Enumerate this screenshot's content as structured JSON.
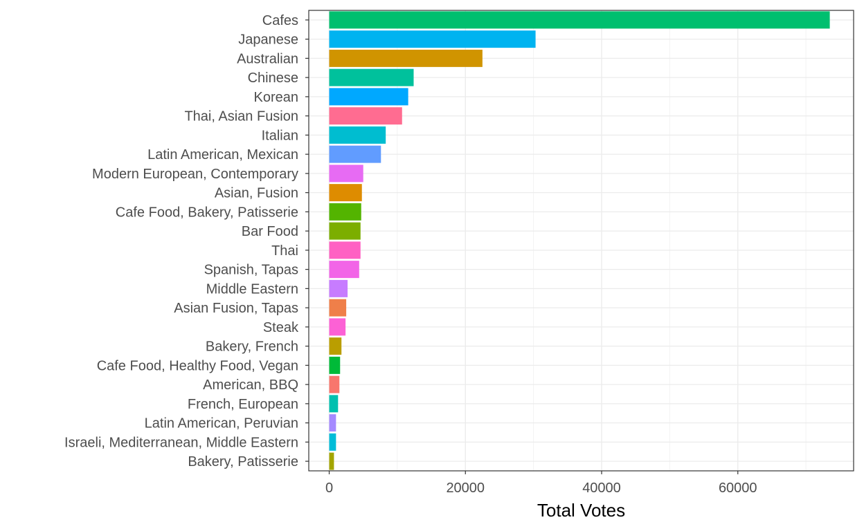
{
  "chart_data": {
    "type": "bar",
    "orientation": "horizontal",
    "title": "",
    "xlabel": "Total Votes",
    "ylabel": "",
    "xlim": [
      -3000,
      77000
    ],
    "xticks": [
      0,
      20000,
      40000,
      60000
    ],
    "grid": true,
    "legend": "none",
    "categories": [
      "Cafes",
      "Japanese",
      "Australian",
      "Chinese",
      "Korean",
      "Thai, Asian Fusion",
      "Italian",
      "Latin American, Mexican",
      "Modern European, Contemporary",
      "Asian, Fusion",
      "Cafe Food, Bakery, Patisserie",
      "Bar Food",
      "Thai",
      "Spanish, Tapas",
      "Middle Eastern",
      "Asian Fusion, Tapas",
      "Steak",
      "Bakery, French",
      "Cafe Food, Healthy Food, Vegan",
      "American, BBQ",
      "French, European",
      "Latin American, Peruvian",
      "Israeli, Mediterranean, Middle Eastern",
      "Bakery, Patisserie"
    ],
    "values": [
      73500,
      30300,
      22500,
      12400,
      11600,
      10700,
      8300,
      7600,
      5000,
      4800,
      4700,
      4600,
      4600,
      4400,
      2700,
      2500,
      2400,
      1800,
      1600,
      1500,
      1300,
      1000,
      1000,
      700
    ],
    "colors": [
      "#00BF6F",
      "#00B3F0",
      "#D09400",
      "#00C19C",
      "#00A8FF",
      "#FF6C91",
      "#00BDD0",
      "#619CFF",
      "#E76BF3",
      "#DE8C00",
      "#53B400",
      "#7CAE00",
      "#FF61C3",
      "#F265E7",
      "#C77CFF",
      "#EF7F49",
      "#FC61D5",
      "#BA9E00",
      "#00BA38",
      "#F8766D",
      "#00C0AF",
      "#A58AFF",
      "#00BCD8",
      "#A3A500"
    ]
  }
}
